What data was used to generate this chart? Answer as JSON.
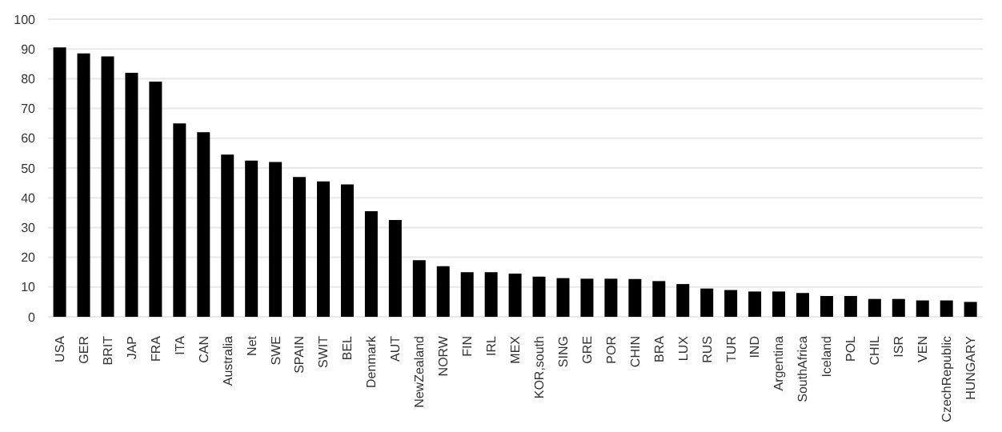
{
  "chart_data": {
    "type": "bar",
    "categories": [
      "USA",
      "GER",
      "BRIT",
      "JAP",
      "FRA",
      "ITA",
      "CAN",
      "Australia",
      "Net",
      "SWE",
      "SPAIN",
      "SWIT",
      "BEL",
      "Denmark",
      "AUT",
      "NewZealand",
      "NORW",
      "FIN",
      "IRL",
      "MEX",
      "KOR,south",
      "SING",
      "GRE",
      "POR",
      "CHIN",
      "BRA",
      "LUX",
      "RUS",
      "TUR",
      "IND",
      "Argentina",
      "SouthAfrica",
      "Iceland",
      "POL",
      "CHIL",
      "ISR",
      "VEN",
      "CzechRepublic",
      "HUNGARY"
    ],
    "values": [
      90.5,
      88.5,
      87.5,
      82,
      79,
      65,
      62,
      54.5,
      52.5,
      52,
      47,
      45.5,
      44.5,
      35.5,
      32.5,
      19,
      17,
      15,
      15,
      14.5,
      13.5,
      13,
      12.8,
      12.8,
      12.7,
      12,
      11,
      9.5,
      9,
      8.5,
      8.5,
      8,
      7,
      7,
      6,
      6,
      5.5,
      5.5,
      5
    ],
    "color": "#000000",
    "ylim": [
      0,
      100
    ],
    "yticks": [
      0,
      10,
      20,
      30,
      40,
      50,
      60,
      70,
      80,
      90,
      100
    ],
    "grid": "y"
  }
}
